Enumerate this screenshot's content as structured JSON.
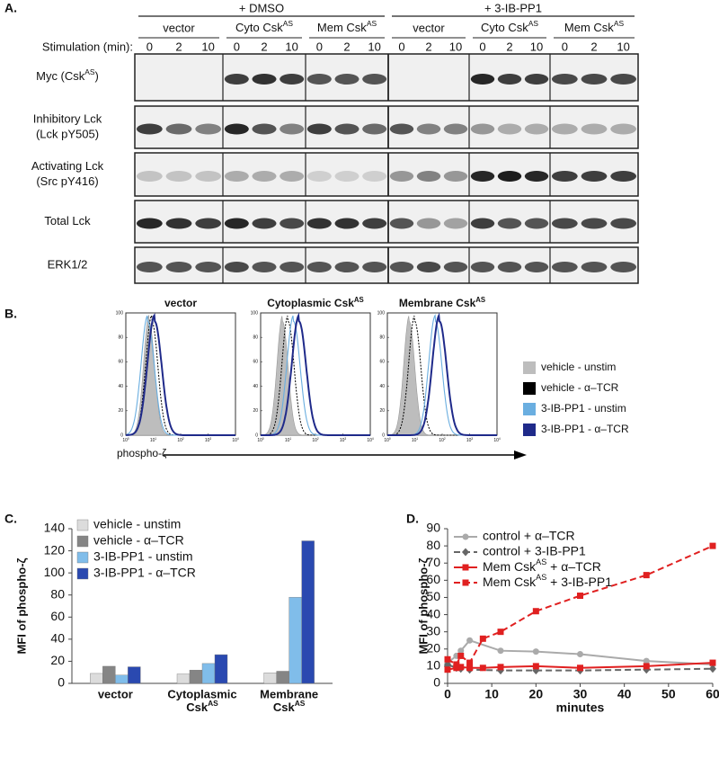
{
  "panel_labels": [
    "A.",
    "B.",
    "C.",
    "D."
  ],
  "panel_a": {
    "treatments": [
      "+ DMSO",
      "+ 3-IB-PP1"
    ],
    "constructs": [
      "vector",
      [
        "Cyto Csk",
        "AS"
      ],
      [
        "Mem Csk",
        "AS"
      ]
    ],
    "stimulation_label": "Stimulation (min):",
    "times": [
      0,
      2,
      10
    ],
    "rows": [
      [
        [
          "Myc (Csk",
          "AS",
          ")"
        ]
      ],
      [
        "Inhibitory Lck",
        "(Lck pY505)"
      ],
      [
        "Activating Lck",
        "(Src pY416)"
      ],
      [
        "Total Lck"
      ],
      [
        "ERK1/2"
      ]
    ]
  },
  "panel_b": {
    "panels": [
      "vector",
      [
        "Cytoplasmic Csk",
        "AS"
      ],
      [
        "Membrane Csk",
        "AS"
      ]
    ],
    "ylim": [
      0,
      100
    ],
    "yticks": [
      0,
      20,
      40,
      60,
      80,
      100
    ],
    "xlim": [
      1,
      10000
    ],
    "log_x": true,
    "xticks": [
      {
        "value": 1,
        "label": [
          "10",
          "0"
        ]
      },
      {
        "value": 10,
        "label": [
          "10",
          "1"
        ]
      },
      {
        "value": 100,
        "label": [
          "10",
          "2"
        ]
      },
      {
        "value": 1000,
        "label": [
          "10",
          "3"
        ]
      },
      {
        "value": 10000,
        "label": [
          "10",
          "4"
        ]
      }
    ],
    "x_label": "phospho-ζ",
    "legend": [
      {
        "name": "vehicle - unstim",
        "color": "#bdbdbd"
      },
      {
        "name": "vehicle - α–TCR",
        "color": "#000000"
      },
      {
        "name": "3-IB-PP1 - unstim",
        "color": "#6aaee0"
      },
      {
        "name": "3-IB-PP1 - α–TCR",
        "color": "#1f2a8a"
      }
    ]
  },
  "chart_data": [
    {
      "type": "bar",
      "categories": [
        [
          "vector"
        ],
        [
          "Cytoplasmic",
          [
            "Csk",
            "AS"
          ]
        ],
        [
          "Membrane",
          [
            "Csk",
            "AS"
          ]
        ]
      ],
      "series": [
        {
          "name": "vehicle - unstim",
          "color": "#dcdcdc",
          "values": [
            9,
            8.5,
            9.5
          ]
        },
        {
          "name": "vehicle - α–TCR",
          "color": "#858585",
          "values": [
            15.5,
            12,
            11
          ]
        },
        {
          "name": "3-IB-PP1 - unstim",
          "color": "#80bdea",
          "values": [
            7.5,
            18,
            78
          ]
        },
        {
          "name": "3-IB-PP1 - α–TCR",
          "color": "#2a49b0",
          "values": [
            15,
            26,
            129
          ]
        }
      ],
      "ylim": [
        0,
        140
      ],
      "yticks": [
        0,
        20,
        40,
        60,
        80,
        100,
        120,
        140
      ],
      "y_label": "MFI of phospho-ζ",
      "legend": "upper left"
    },
    {
      "type": "line",
      "series": [
        {
          "name": "control + α–TCR",
          "color": "#aaaaaa",
          "marker": "circle",
          "dashed": false,
          "x": [
            0,
            2,
            3,
            5,
            12,
            20,
            30,
            45,
            60
          ],
          "values": [
            12,
            16,
            19,
            25,
            19,
            18.5,
            17,
            13,
            11
          ]
        },
        {
          "name": "control + 3-IB-PP1",
          "color": "#666666",
          "marker": "diamond",
          "dashed": true,
          "x": [
            0,
            2,
            3,
            5,
            12,
            20,
            30,
            45,
            60
          ],
          "values": [
            11,
            9,
            8.5,
            8,
            7.5,
            7.5,
            7.5,
            8,
            8.5
          ]
        },
        {
          "name": [
            "Mem Csk",
            "AS",
            " + α–TCR"
          ],
          "color": "#e02020",
          "marker": "square",
          "dashed": false,
          "x": [
            0,
            2,
            3,
            5,
            8,
            12,
            20,
            30,
            45,
            60
          ],
          "values": [
            8,
            9,
            9.5,
            9,
            9,
            9.5,
            10,
            9,
            10,
            12
          ]
        },
        {
          "name": [
            "Mem Csk",
            "AS",
            " + 3-IB-PP1"
          ],
          "color": "#e02020",
          "marker": "square",
          "dashed": true,
          "x": [
            0,
            2,
            3,
            5,
            8,
            12,
            20,
            30,
            45,
            60
          ],
          "values": [
            14,
            11,
            16,
            12,
            26,
            30,
            42,
            51,
            63,
            80
          ]
        }
      ],
      "xlim": [
        0,
        60
      ],
      "xticks": [
        0,
        10,
        20,
        30,
        40,
        50,
        60
      ],
      "ylim": [
        0,
        90
      ],
      "yticks": [
        0,
        10,
        20,
        30,
        40,
        50,
        60,
        70,
        80,
        90
      ],
      "x_label": "minutes",
      "y_label": "MFI of phospho-ζ",
      "legend": "upper left"
    }
  ]
}
